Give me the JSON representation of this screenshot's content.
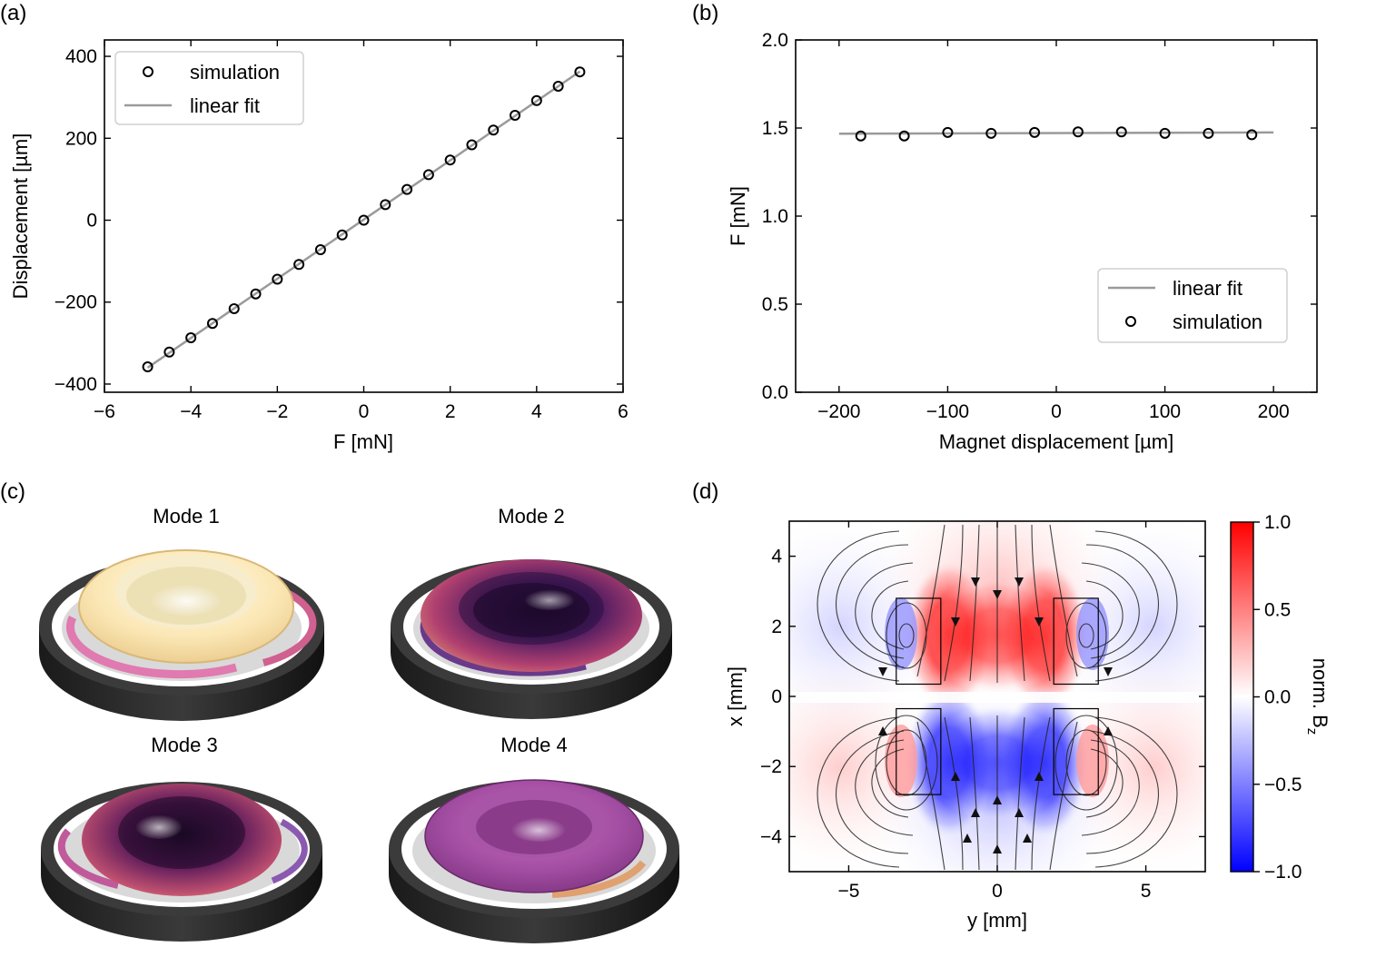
{
  "panel_labels": [
    "(a)",
    "(b)",
    "(c)",
    "(d)"
  ],
  "chart_data": [
    {
      "id": "a",
      "type": "scatter",
      "xlabel": "F [mN]",
      "ylabel": "Displacement [µm]",
      "xlim": [
        -6,
        6
      ],
      "ylim": [
        -420,
        440
      ],
      "xticks": [
        -6,
        -4,
        -2,
        0,
        2,
        4,
        6
      ],
      "xtick_labels": [
        "−6",
        "−4",
        "−2",
        "0",
        "2",
        "4",
        "6"
      ],
      "yticks": [
        -400,
        -200,
        0,
        200,
        400
      ],
      "ytick_labels": [
        "−400",
        "−200",
        "0",
        "200",
        "400"
      ],
      "legend": {
        "position": "top-left",
        "entries": [
          "simulation",
          "linear fit"
        ]
      },
      "series": [
        {
          "name": "simulation",
          "marker": "open-circle",
          "x": [
            -5,
            -4.5,
            -4,
            -3.5,
            -3,
            -2.5,
            -2,
            -1.5,
            -1,
            -0.5,
            0,
            0.5,
            1,
            1.5,
            2,
            2.5,
            3,
            3.5,
            4,
            4.5,
            5
          ],
          "y": [
            -358,
            -322,
            -287,
            -252,
            -216,
            -180,
            -144,
            -108,
            -72,
            -36,
            0,
            38,
            75,
            111,
            147,
            184,
            220,
            256,
            292,
            327,
            362
          ]
        },
        {
          "name": "linear fit",
          "line": "solid-gray",
          "x": [
            -5,
            5
          ],
          "y": [
            -360,
            363
          ]
        }
      ]
    },
    {
      "id": "b",
      "type": "scatter",
      "xlabel": "Magnet displacement [µm]",
      "ylabel": "F [mN]",
      "xlim": [
        -240,
        240
      ],
      "ylim": [
        0,
        2.0
      ],
      "xticks": [
        -200,
        -100,
        0,
        100,
        200
      ],
      "xtick_labels": [
        "−200",
        "−100",
        "0",
        "100",
        "200"
      ],
      "yticks": [
        0,
        0.5,
        1.0,
        1.5,
        2.0
      ],
      "ytick_labels": [
        "0.0",
        "0.5",
        "1.0",
        "1.5",
        "2.0"
      ],
      "legend": {
        "position": "bottom-right",
        "entries": [
          "linear fit",
          "simulation"
        ]
      },
      "series": [
        {
          "name": "linear fit",
          "line": "solid-gray",
          "x": [
            -200,
            200
          ],
          "y": [
            1.468,
            1.475
          ]
        },
        {
          "name": "simulation",
          "marker": "open-circle",
          "x": [
            -180,
            -140,
            -100,
            -60,
            -20,
            20,
            60,
            100,
            140,
            180
          ],
          "y": [
            1.455,
            1.455,
            1.475,
            1.47,
            1.475,
            1.478,
            1.478,
            1.47,
            1.47,
            1.462
          ]
        }
      ]
    },
    {
      "id": "d",
      "type": "heatmap",
      "description_free": true,
      "xlabel": "y [mm]",
      "ylabel": "x [mm]",
      "xlim": [
        -7,
        7
      ],
      "ylim": [
        -5,
        5
      ],
      "xticks": [
        -5,
        0,
        5
      ],
      "xtick_labels": [
        "−5",
        "0",
        "5"
      ],
      "yticks": [
        -4,
        -2,
        0,
        2,
        4
      ],
      "ytick_labels": [
        "−4",
        "−2",
        "0",
        "2",
        "4"
      ],
      "colorbar": {
        "label": "norm. B",
        "label_sub": "z",
        "range": [
          -1.0,
          1.0
        ],
        "ticks": [
          -1.0,
          -0.5,
          0.0,
          0.5,
          1.0
        ],
        "tick_labels": [
          "−1.0",
          "−0.5",
          "0.0",
          "0.5",
          "1.0"
        ],
        "colors": [
          "#0000ff",
          "#ffffff",
          "#ff0000"
        ]
      },
      "magnets": [
        {
          "y0": -3.4,
          "y1": -1.9,
          "x0": 0.35,
          "x1": 2.8
        },
        {
          "y0": 1.9,
          "y1": 3.4,
          "x0": 0.35,
          "x1": 2.8
        },
        {
          "y0": -3.4,
          "y1": -1.9,
          "x0": -2.8,
          "x1": -0.35
        },
        {
          "y0": 1.9,
          "y1": 3.4,
          "x0": -2.8,
          "x1": -0.35
        }
      ]
    }
  ],
  "modes": {
    "titles": [
      "Mode 1",
      "Mode 2",
      "Mode 3",
      "Mode 4"
    ]
  }
}
